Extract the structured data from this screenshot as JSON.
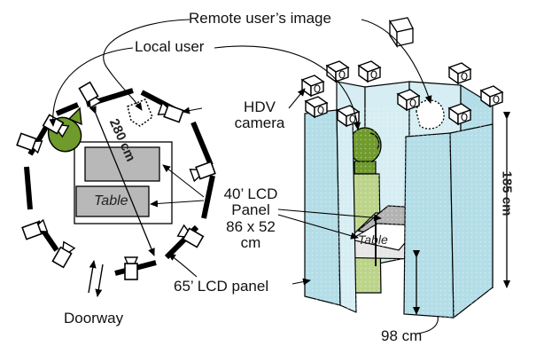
{
  "labels": {
    "remote_user_image": "Remote user’s image",
    "local_user": "Local user",
    "hdv_camera_line1": "HDV",
    "hdv_camera_line2": "camera",
    "lcd40_line1": "40’ LCD",
    "lcd40_line2": "Panel",
    "lcd40_line3": "86 x 52",
    "lcd40_line4": "cm",
    "lcd65": "65’ LCD panel",
    "doorway": "Doorway",
    "dim_98": "98 cm",
    "dim_185": "185 cm",
    "dim_280": "280 cm",
    "table_left": "Table",
    "table_right": "Table"
  },
  "colors": {
    "panel_blue": "#b3dde7",
    "panel_blue_light": "#d6eef3",
    "user_green": "#6f9a2c",
    "user_green_light": "#bcd48a",
    "wall_black": "#000000",
    "table_gray": "#b3b3b3"
  }
}
